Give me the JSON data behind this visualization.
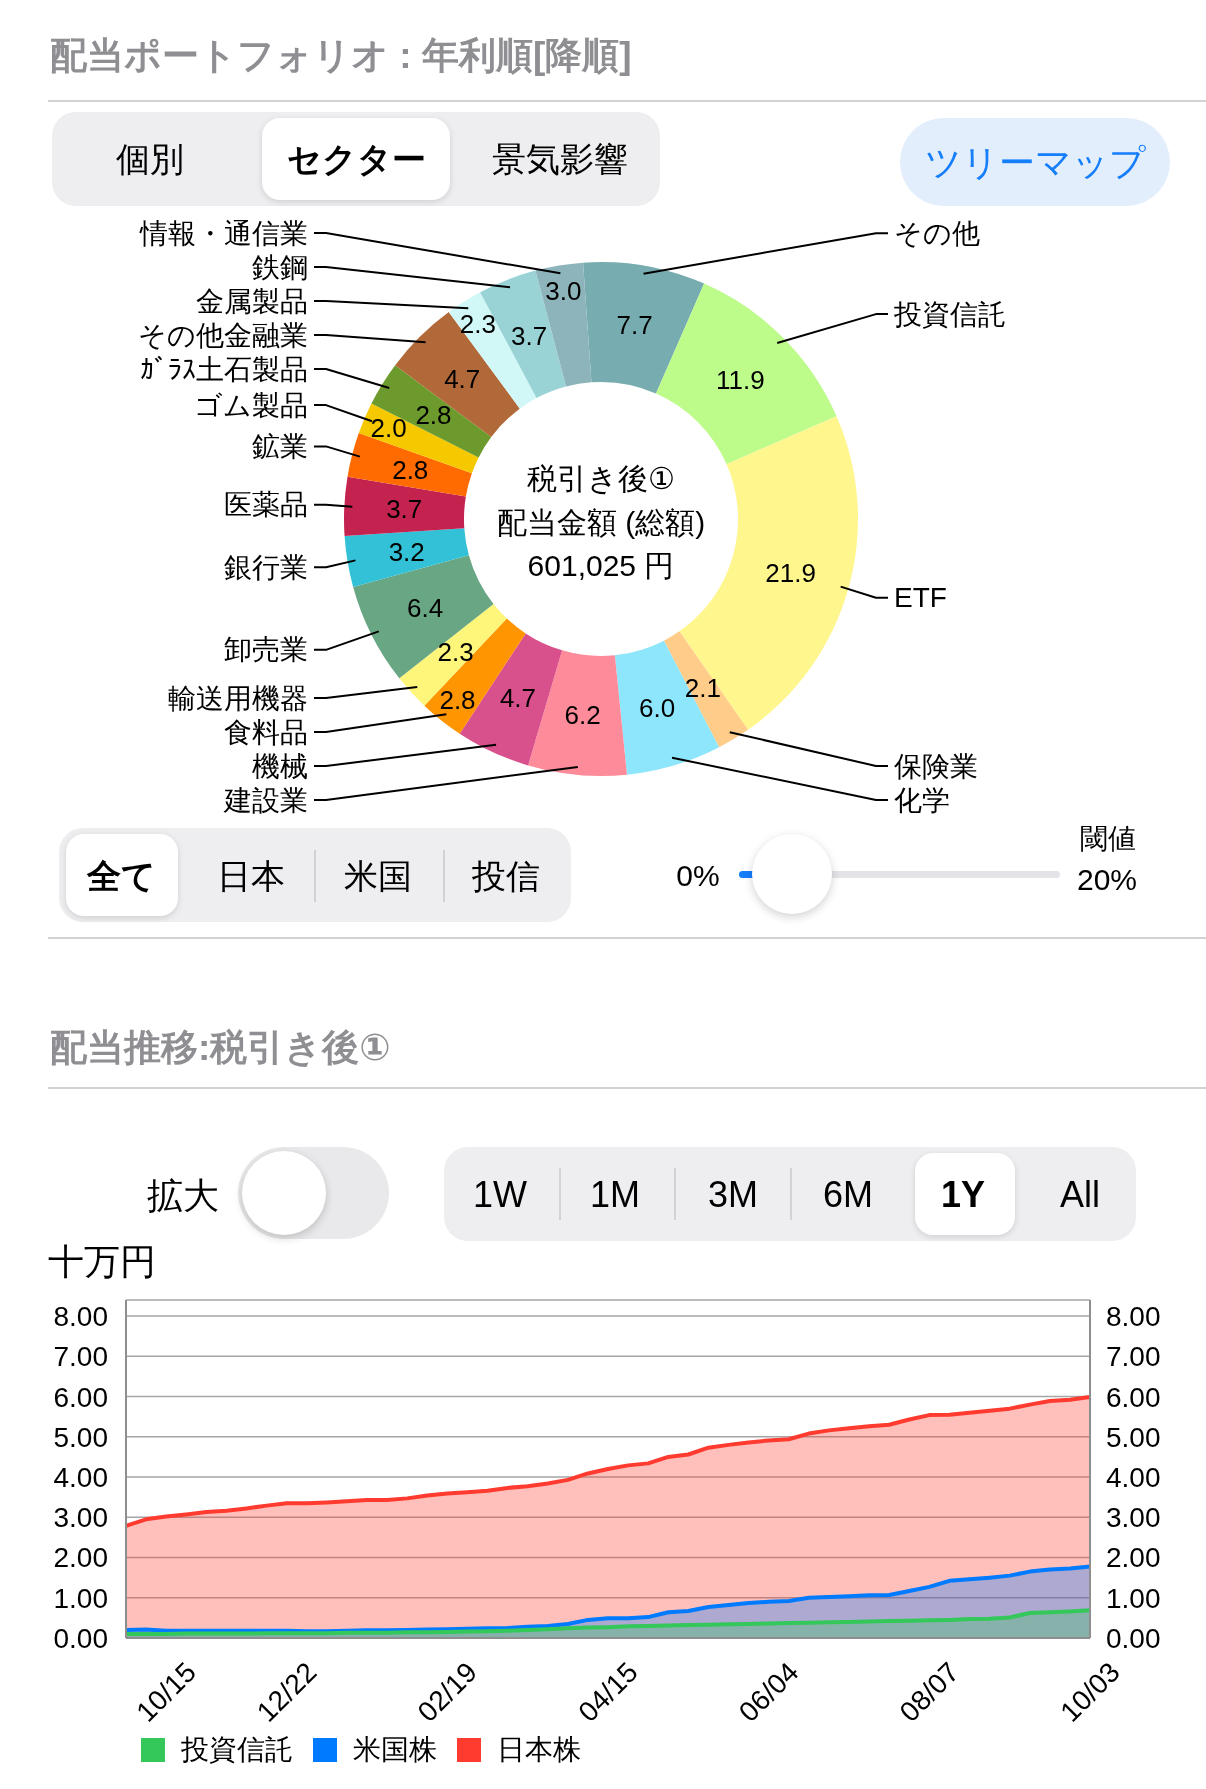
{
  "chart_data": [
    {
      "type": "donut",
      "title": "配当ポートフォリオ : 年利順[降順]",
      "categories": [
        "その他",
        "投資信託",
        "ETF",
        "保険業",
        "化学",
        "建設業",
        "機械",
        "食料品",
        "輸送用機器",
        "卸売業",
        "銀行業",
        "医薬品",
        "鉱業",
        "ゴム製品",
        "ｶﾞﾗｽ土石製品",
        "その他金融業",
        "金属製品",
        "鉄鋼",
        "情報・通信業"
      ],
      "values": [
        7.7,
        11.9,
        21.9,
        2.1,
        6.0,
        6.2,
        4.7,
        2.8,
        2.3,
        6.4,
        3.2,
        3.7,
        2.8,
        2.0,
        2.8,
        4.7,
        2.3,
        3.7,
        3.0
      ],
      "value_labels": [
        "7.7",
        "11.9",
        "21.9",
        "2.1",
        "6.0",
        "6.2",
        "4.7",
        "2.8",
        "2.3",
        "6.4",
        "3.2",
        "3.7",
        "2.8",
        "2.0",
        "2.8",
        "4.7",
        "2.3",
        "3.7",
        "3.0"
      ],
      "colors": [
        "#77adb0",
        "#bdfb8b",
        "#fff68e",
        "#ffcc8a",
        "#8de6fb",
        "#fd8b9a",
        "#d8508c",
        "#ff9500",
        "#fdf67a",
        "#68a684",
        "#32c1d6",
        "#c4224f",
        "#ff6b00",
        "#f6c800",
        "#6c9a2c",
        "#b2693a",
        "#d2f7f7",
        "#9ad3d6",
        "#8db4bb"
      ],
      "annotations": [
        "個別",
        "セクター",
        "景気影響",
        "ツリーマップ",
        "税引き後①",
        "配当金額 (総額)",
        "601,025 円",
        "全て",
        "日本",
        "米国",
        "投信",
        "0%",
        "閾値",
        "20%"
      ]
    },
    {
      "type": "area",
      "title": "配当推移:税引き後①",
      "ylabel": "十万円",
      "categories": [
        null,
        null,
        "10/15",
        null,
        null,
        null,
        null,
        null,
        "12/22",
        null,
        null,
        null,
        null,
        null,
        null,
        null,
        "02/19",
        null,
        null,
        null,
        null,
        null,
        null,
        null,
        "04/15",
        null,
        null,
        null,
        null,
        null,
        null,
        null,
        "06/04",
        null,
        null,
        null,
        null,
        null,
        null,
        null,
        "08/07",
        null,
        null,
        null,
        null,
        null,
        null,
        null,
        "10/03"
      ],
      "series": [
        {
          "name": "投資信託",
          "color": "#34c759",
          "values": [
            0.1,
            0.1,
            0.1,
            0.11,
            0.11,
            0.11,
            0.11,
            0.12,
            0.12,
            0.12,
            0.12,
            0.13,
            0.13,
            0.13,
            0.14,
            0.14,
            0.15,
            0.16,
            0.17,
            0.18,
            0.2,
            0.22,
            0.24,
            0.26,
            0.27,
            0.29,
            0.3,
            0.31,
            0.32,
            0.33,
            0.34,
            0.35,
            0.36,
            0.37,
            0.38,
            0.39,
            0.4,
            0.41,
            0.42,
            0.43,
            0.44,
            0.45,
            0.47,
            0.48,
            0.51,
            0.62,
            0.64,
            0.66,
            0.69
          ]
        },
        {
          "name": "米国株",
          "color": "#007aff",
          "values": [
            0.1,
            0.11,
            0.08,
            0.07,
            0.07,
            0.07,
            0.07,
            0.06,
            0.06,
            0.05,
            0.05,
            0.05,
            0.06,
            0.06,
            0.06,
            0.07,
            0.07,
            0.07,
            0.07,
            0.07,
            0.08,
            0.08,
            0.11,
            0.19,
            0.22,
            0.2,
            0.22,
            0.33,
            0.35,
            0.44,
            0.48,
            0.52,
            0.54,
            0.55,
            0.62,
            0.63,
            0.64,
            0.65,
            0.65,
            0.74,
            0.83,
            0.97,
            0.99,
            1.02,
            1.04,
            1.03,
            1.06,
            1.07,
            1.09
          ]
        },
        {
          "name": "日本株",
          "color": "#ff3b30",
          "values": [
            2.59,
            2.74,
            2.84,
            2.89,
            2.95,
            2.98,
            3.04,
            3.11,
            3.17,
            3.18,
            3.2,
            3.22,
            3.24,
            3.24,
            3.27,
            3.33,
            3.37,
            3.39,
            3.42,
            3.48,
            3.49,
            3.54,
            3.58,
            3.64,
            3.71,
            3.8,
            3.82,
            3.86,
            3.89,
            3.96,
            3.98,
            3.99,
            4.01,
            4.02,
            4.08,
            4.14,
            4.17,
            4.2,
            4.23,
            4.26,
            4.27,
            4.13,
            4.14,
            4.15,
            4.15,
            4.15,
            4.19,
            4.19,
            4.21
          ]
        }
      ],
      "stacked": true,
      "ylim": [
        0,
        8.4
      ],
      "yticks": [
        {
          "value": 0,
          "label": "0.00"
        },
        {
          "value": 1,
          "label": "1.00"
        },
        {
          "value": 2,
          "label": "2.00"
        },
        {
          "value": 3,
          "label": "3.00"
        },
        {
          "value": 4,
          "label": "4.00"
        },
        {
          "value": 5,
          "label": "5.00"
        },
        {
          "value": 6,
          "label": "6.00"
        },
        {
          "value": 7,
          "label": "7.00"
        },
        {
          "value": 8,
          "label": "8.00"
        }
      ],
      "y2lim": [
        0,
        8.4
      ],
      "y2ticks": [
        {
          "value": 0,
          "label": "0.00"
        },
        {
          "value": 1,
          "label": "1.00"
        },
        {
          "value": 2,
          "label": "2.00"
        },
        {
          "value": 3,
          "label": "3.00"
        },
        {
          "value": 4,
          "label": "4.00"
        },
        {
          "value": 5,
          "label": "5.00"
        },
        {
          "value": 6,
          "label": "6.00"
        },
        {
          "value": 7,
          "label": "7.00"
        },
        {
          "value": 8,
          "label": "8.00"
        }
      ],
      "grid": "y",
      "legend": "bottom left",
      "annotations": [
        "拡大",
        "1W",
        "1M",
        "3M",
        "6M",
        "1Y",
        "All"
      ]
    }
  ]
}
